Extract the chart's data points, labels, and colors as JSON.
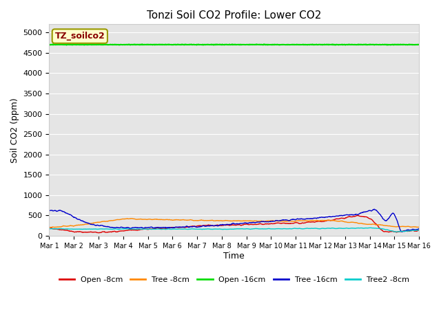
{
  "title": "Tonzi Soil CO2 Profile: Lower CO2",
  "xlabel": "Time",
  "ylabel": "Soil CO2 (ppm)",
  "ylim": [
    0,
    5200
  ],
  "yticks": [
    0,
    500,
    1000,
    1500,
    2000,
    2500,
    3000,
    3500,
    4000,
    4500,
    5000
  ],
  "annotation_label": "TZ_soilco2",
  "bg_color": "#e5e5e5",
  "series": {
    "Open -8cm": {
      "color": "#dd0000",
      "lw": 1.0
    },
    "Tree -8cm": {
      "color": "#ff8800",
      "lw": 1.0
    },
    "Open -16cm": {
      "color": "#00dd00",
      "lw": 1.5
    },
    "Tree -16cm": {
      "color": "#0000cc",
      "lw": 1.0
    },
    "Tree2 -8cm": {
      "color": "#00cccc",
      "lw": 1.0
    }
  },
  "legend_fontsize": 8,
  "title_fontsize": 11,
  "figsize": [
    6.4,
    4.8
  ],
  "dpi": 100
}
